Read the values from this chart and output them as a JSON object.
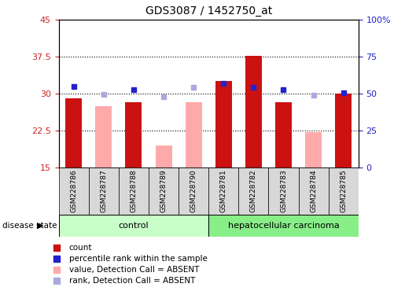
{
  "title": "GDS3087 / 1452750_at",
  "samples": [
    "GSM228786",
    "GSM228787",
    "GSM228788",
    "GSM228789",
    "GSM228790",
    "GSM228781",
    "GSM228782",
    "GSM228783",
    "GSM228784",
    "GSM228785"
  ],
  "ylim_left": [
    15,
    45
  ],
  "ylim_right": [
    0,
    100
  ],
  "yticks_left": [
    15,
    22.5,
    30,
    37.5,
    45
  ],
  "yticks_right": [
    0,
    25,
    50,
    75,
    100
  ],
  "ytick_labels_left": [
    "15",
    "22.5",
    "30",
    "37.5",
    "45"
  ],
  "ytick_labels_right": [
    "0",
    "25",
    "50",
    "75",
    "100%"
  ],
  "count_values": [
    29.0,
    null,
    28.3,
    null,
    null,
    32.5,
    37.7,
    28.3,
    null,
    30.0
  ],
  "absent_value_values": [
    null,
    27.4,
    null,
    19.5,
    28.2,
    null,
    null,
    null,
    22.2,
    null
  ],
  "percentile_values": [
    31.5,
    null,
    30.8,
    null,
    null,
    32.0,
    31.3,
    30.8,
    null,
    30.2
  ],
  "absent_rank_values": [
    null,
    29.8,
    null,
    29.3,
    31.3,
    null,
    null,
    null,
    29.7,
    null
  ],
  "count_color": "#cc1111",
  "absent_value_color": "#ffaaaa",
  "percentile_color": "#2222cc",
  "absent_rank_color": "#aaaadd",
  "left_tick_color": "#cc2222",
  "right_tick_color": "#2222cc",
  "legend_items": [
    {
      "label": "count",
      "color": "#cc1111",
      "marker": "s"
    },
    {
      "label": "percentile rank within the sample",
      "color": "#2222cc",
      "marker": "s"
    },
    {
      "label": "value, Detection Call = ABSENT",
      "color": "#ffaaaa",
      "marker": "s"
    },
    {
      "label": "rank, Detection Call = ABSENT",
      "color": "#aaaadd",
      "marker": "s"
    }
  ],
  "disease_state_label": "disease state"
}
